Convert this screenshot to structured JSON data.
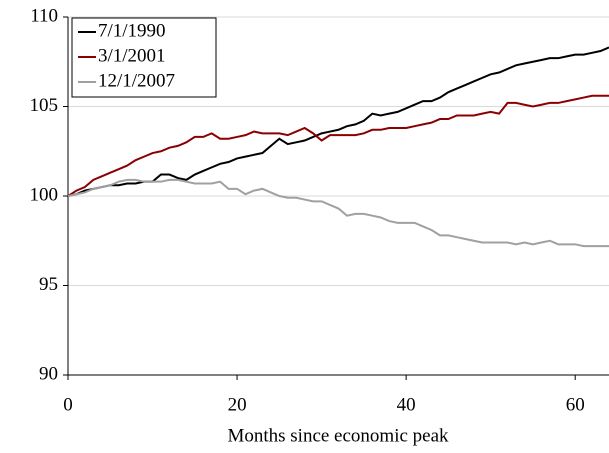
{
  "chart_data": {
    "type": "line",
    "x_label": "Months since economic peak",
    "x": [
      0,
      1,
      2,
      3,
      4,
      5,
      6,
      7,
      8,
      9,
      10,
      11,
      12,
      13,
      14,
      15,
      16,
      17,
      18,
      19,
      20,
      21,
      22,
      23,
      24,
      25,
      26,
      27,
      28,
      29,
      30,
      31,
      32,
      33,
      34,
      35,
      36,
      37,
      38,
      39,
      40,
      41,
      42,
      43,
      44,
      45,
      46,
      47,
      48,
      49,
      50,
      51,
      52,
      53,
      54,
      55,
      56,
      57,
      58,
      59,
      60,
      61,
      62,
      63,
      64
    ],
    "series": [
      {
        "name": "7/1/1990",
        "color": "#000000",
        "values": [
          100.0,
          100.1,
          100.3,
          100.4,
          100.5,
          100.6,
          100.6,
          100.7,
          100.7,
          100.8,
          100.8,
          101.2,
          101.2,
          101.0,
          100.9,
          101.2,
          101.4,
          101.6,
          101.8,
          101.9,
          102.1,
          102.2,
          102.3,
          102.4,
          102.8,
          103.2,
          102.9,
          103.0,
          103.1,
          103.3,
          103.5,
          103.6,
          103.7,
          103.9,
          104.0,
          104.2,
          104.6,
          104.5,
          104.6,
          104.7,
          104.9,
          105.1,
          105.3,
          105.3,
          105.5,
          105.8,
          106.0,
          106.2,
          106.4,
          106.6,
          106.8,
          106.9,
          107.1,
          107.3,
          107.4,
          107.5,
          107.6,
          107.7,
          107.7,
          107.8,
          107.9,
          107.9,
          108.0,
          108.1,
          108.3
        ]
      },
      {
        "name": "3/1/2001",
        "color": "#8b0000",
        "values": [
          100.0,
          100.3,
          100.5,
          100.9,
          101.1,
          101.3,
          101.5,
          101.7,
          102.0,
          102.2,
          102.4,
          102.5,
          102.7,
          102.8,
          103.0,
          103.3,
          103.3,
          103.5,
          103.2,
          103.2,
          103.3,
          103.4,
          103.6,
          103.5,
          103.5,
          103.5,
          103.4,
          103.6,
          103.8,
          103.5,
          103.1,
          103.4,
          103.4,
          103.4,
          103.4,
          103.5,
          103.7,
          103.7,
          103.8,
          103.8,
          103.8,
          103.9,
          104.0,
          104.1,
          104.3,
          104.3,
          104.5,
          104.5,
          104.5,
          104.6,
          104.7,
          104.6,
          105.2,
          105.2,
          105.1,
          105.0,
          105.1,
          105.2,
          105.2,
          105.3,
          105.4,
          105.5,
          105.6,
          105.6,
          105.6
        ]
      },
      {
        "name": "12/1/2007",
        "color": "#a0a0a0",
        "values": [
          100.0,
          100.1,
          100.2,
          100.4,
          100.5,
          100.6,
          100.8,
          100.9,
          100.9,
          100.8,
          100.8,
          100.8,
          100.9,
          100.9,
          100.8,
          100.7,
          100.7,
          100.7,
          100.8,
          100.4,
          100.4,
          100.1,
          100.3,
          100.4,
          100.2,
          100.0,
          99.9,
          99.9,
          99.8,
          99.7,
          99.7,
          99.5,
          99.3,
          98.9,
          99.0,
          99.0,
          98.9,
          98.8,
          98.6,
          98.5,
          98.5,
          98.5,
          98.3,
          98.1,
          97.8,
          97.8,
          97.7,
          97.6,
          97.5,
          97.4,
          97.4,
          97.4,
          97.4,
          97.3,
          97.4,
          97.3,
          97.4,
          97.5,
          97.3,
          97.3,
          97.3,
          97.2,
          97.2,
          97.2,
          97.2
        ]
      }
    ],
    "xlim": [
      0,
      64
    ],
    "xticks": [
      0,
      20,
      40,
      60
    ],
    "ylim": [
      90,
      110
    ],
    "yticks": [
      90,
      95,
      100,
      105,
      110
    ],
    "grid": true,
    "legend": "top-left"
  }
}
